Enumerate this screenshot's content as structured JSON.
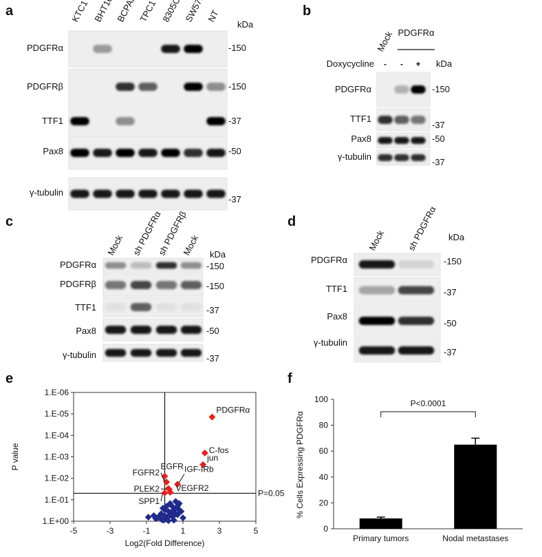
{
  "panels": [
    "a",
    "b",
    "c",
    "d",
    "e",
    "f"
  ],
  "blots": [
    {
      "lanes": [
        "KTC1",
        "BHT101",
        "BCPAP",
        "TPC1",
        "8305C",
        "SW579",
        "NT"
      ],
      "unit": "kDa",
      "rows": [
        {
          "name": "PDGFRα",
          "marker": "-150"
        },
        {
          "name": "PDGFRβ",
          "marker": "-150"
        },
        {
          "name": "TTF1",
          "marker": "-37"
        },
        {
          "name": "Pax8",
          "marker": "-50"
        },
        {
          "name": "γ-tubulin",
          "marker": "-37"
        }
      ]
    },
    {
      "lanes": [
        "Mock"
      ],
      "group": "PDGFRα",
      "treatment": {
        "name": "Doxycycline",
        "lanes": [
          "-",
          "-",
          "+"
        ]
      },
      "unit": "kDa",
      "rows": [
        {
          "name": "PDGFRα",
          "marker": "-150"
        },
        {
          "name": "TTF1",
          "marker": "-37"
        },
        {
          "name": "Pax8",
          "marker": "-50"
        },
        {
          "name": "γ-tubulin",
          "marker": "-37"
        }
      ]
    },
    {
      "lanes": [
        "Mock",
        "sh PDGFRα",
        "sh PDGFRβ",
        "Mock"
      ],
      "unit": "kDa",
      "rows": [
        {
          "name": "PDGFRα",
          "marker": "-150"
        },
        {
          "name": "PDGFRβ",
          "marker": "-150"
        },
        {
          "name": "TTF1",
          "marker": "-37"
        },
        {
          "name": "Pax8",
          "marker": "-50"
        },
        {
          "name": "γ-tubulin",
          "marker": "-37"
        }
      ]
    },
    {
      "lanes": [
        "Mock",
        "sh PDGFRα"
      ],
      "unit": "kDa",
      "rows": [
        {
          "name": "PDGFRα",
          "marker": "-150"
        },
        {
          "name": "TTF1",
          "marker": "-37"
        },
        {
          "name": "Pax8",
          "marker": "-50"
        },
        {
          "name": "γ-tubulin",
          "marker": "-37"
        }
      ]
    }
  ],
  "chart_data": [
    {
      "type": "scatter",
      "x_label": "Log2(Fold Difference)",
      "y_label": "P value",
      "xlim": [
        -5,
        5
      ],
      "xticks": [
        -5,
        -3,
        -1,
        1,
        3,
        5
      ],
      "ylim": [
        1,
        1e-06
      ],
      "log_scale": true,
      "yticks": [
        {
          "value": 1e-06,
          "label": "1.E-06"
        },
        {
          "value": 1e-05,
          "label": "1.E-05"
        },
        {
          "value": 0.0001,
          "label": "1.E-04"
        },
        {
          "value": 0.001,
          "label": "1.E-03"
        },
        {
          "value": 0.01,
          "label": "1.E-02"
        },
        {
          "value": 0.1,
          "label": "1.E-01"
        },
        {
          "value": 1,
          "label": "1.E+00"
        }
      ],
      "threshold": {
        "value": 0.05,
        "label": "P=0.05"
      },
      "vline_x": 0,
      "series": [
        {
          "color": "#e8201c",
          "x": [
            2.6,
            2.2,
            2.1,
            0.0,
            0.7,
            0.1,
            0.25,
            0.0,
            0.3,
            0.2
          ],
          "values": [
            1.4e-05,
            0.00066,
            0.0023,
            0.008,
            0.019,
            0.015,
            0.033,
            0.048,
            0.045,
            0.03
          ],
          "labels": [
            "PDGFRα",
            "C-fos",
            "jun",
            "EGFR",
            "IGF-IRb",
            "FGFR2",
            "PLEK2",
            "SPP1",
            "VEGFR2",
            null
          ]
        },
        {
          "color": "#1f2a8a",
          "x": [
            -0.9,
            -0.6,
            -0.5,
            -0.3,
            -0.2,
            -0.1,
            0,
            0.1,
            0.2,
            0.3,
            0.4,
            0.5,
            0.6,
            0.7,
            0.8,
            0.9,
            -0.4,
            -0.2,
            0,
            0.2,
            0.4,
            0.6,
            0.1,
            0.3,
            0.5,
            0.7,
            0,
            -0.1,
            0.2,
            0.4,
            0.6,
            0.8,
            0.3,
            0.5,
            1.0
          ],
          "values": [
            0.65,
            0.55,
            0.75,
            0.6,
            0.8,
            0.9,
            0.85,
            0.7,
            0.95,
            0.5,
            0.4,
            0.3,
            0.25,
            0.2,
            0.15,
            0.35,
            0.7,
            0.45,
            0.3,
            0.35,
            0.6,
            0.45,
            0.2,
            0.15,
            0.55,
            0.5,
            0.55,
            0.25,
            0.6,
            0.2,
            0.12,
            0.3,
            0.4,
            0.9,
            0.7
          ]
        }
      ]
    },
    {
      "type": "bar",
      "y_label": "% Cells Expressing PDGFRα",
      "categories": [
        "Primary tumors",
        "Nodal metastases"
      ],
      "values": [
        8,
        65
      ],
      "errors": [
        1,
        5
      ],
      "color": "#000000",
      "ylim": [
        0,
        100
      ],
      "yticks": [
        0,
        20,
        40,
        60,
        80,
        100
      ],
      "annotation": "P<0.0001"
    }
  ]
}
